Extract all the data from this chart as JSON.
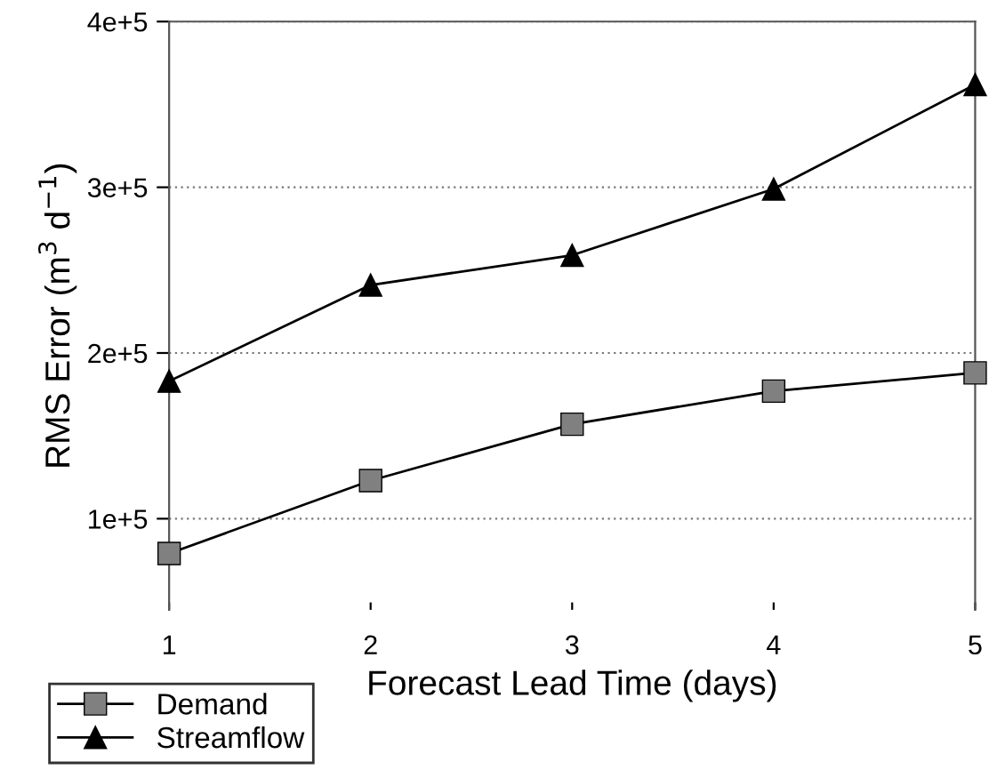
{
  "chart_data": {
    "type": "line",
    "xlabel": "Forecast Lead Time (days)",
    "ylabel": "RMS Error (m$^{3}$ d$^{−1}$)",
    "x": [
      1,
      2,
      3,
      4,
      5
    ],
    "series": [
      {
        "name": "Demand",
        "color": "#808080",
        "marker": "square",
        "values": [
          79000,
          123000,
          157000,
          177000,
          188000
        ]
      },
      {
        "name": "Streamflow",
        "color": "#000000",
        "marker": "triangle",
        "values": [
          183000,
          241000,
          259000,
          299000,
          362000
        ]
      }
    ],
    "xlim": [
      1,
      5
    ],
    "xticks": [
      1,
      2,
      3,
      4,
      5
    ],
    "ylim": [
      45000,
      400000
    ],
    "yticks": [
      {
        "value": 100000,
        "label": "1e+5"
      },
      {
        "value": 200000,
        "label": "2e+5"
      },
      {
        "value": 300000,
        "label": "3e+5"
      },
      {
        "value": 400000,
        "label": "4e+5"
      }
    ],
    "grid": "y",
    "legend": "bottom left",
    "line_style": "solid"
  }
}
